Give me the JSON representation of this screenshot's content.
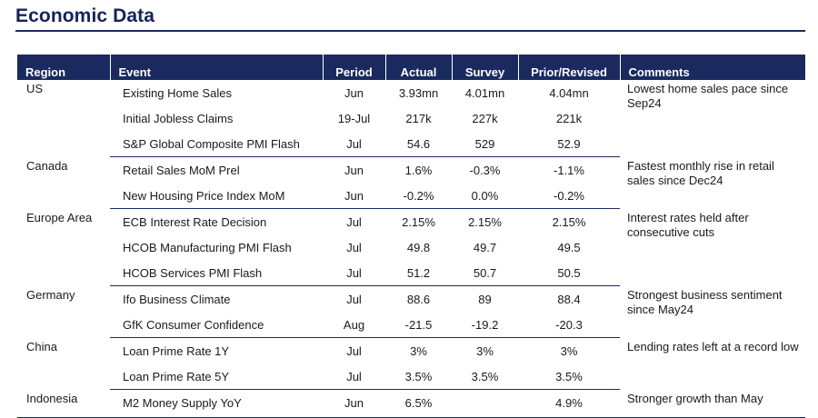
{
  "title": "Economic Data",
  "table": {
    "headers": [
      "Region",
      "Event",
      "Period",
      "Actual",
      "Survey",
      "Prior/Revised",
      "Comments"
    ],
    "groups": [
      {
        "region": "US",
        "comment": "Lowest home sales pace since Sep24",
        "rows": [
          {
            "event": "Existing Home Sales",
            "period": "Jun",
            "actual": "3.93mn",
            "survey": "4.01mn",
            "prior": "4.04mn"
          },
          {
            "event": "Initial Jobless Claims",
            "period": "19-Jul",
            "actual": "217k",
            "survey": "227k",
            "prior": "221k"
          },
          {
            "event": "S&P Global Composite PMI Flash",
            "period": "Jul",
            "actual": "54.6",
            "survey": "529",
            "prior": "52.9"
          }
        ]
      },
      {
        "region": "Canada",
        "comment": "Fastest monthly rise in retail sales since Dec24",
        "rows": [
          {
            "event": "Retail Sales MoM Prel",
            "period": "Jun",
            "actual": "1.6%",
            "survey": "-0.3%",
            "prior": "-1.1%"
          },
          {
            "event": "New Housing Price Index MoM",
            "period": "Jun",
            "actual": "-0.2%",
            "survey": "0.0%",
            "prior": "-0.2%"
          }
        ]
      },
      {
        "region": "Europe Area",
        "comment": "Interest rates held after consecutive cuts",
        "rows": [
          {
            "event": "ECB Interest Rate Decision",
            "period": "Jul",
            "actual": "2.15%",
            "survey": "2.15%",
            "prior": "2.15%"
          },
          {
            "event": "HCOB Manufacturing PMI Flash",
            "period": "Jul",
            "actual": "49.8",
            "survey": "49.7",
            "prior": "49.5"
          },
          {
            "event": "HCOB Services PMI Flash",
            "period": "Jul",
            "actual": "51.2",
            "survey": "50.7",
            "prior": "50.5"
          }
        ]
      },
      {
        "region": "Germany",
        "comment": "Strongest business sentiment since May24",
        "rows": [
          {
            "event": "Ifo Business Climate",
            "period": "Jul",
            "actual": "88.6",
            "survey": "89",
            "prior": "88.4"
          },
          {
            "event": "GfK Consumer Confidence",
            "period": "Aug",
            "actual": "-21.5",
            "survey": "-19.2",
            "prior": "-20.3"
          }
        ]
      },
      {
        "region": "China",
        "comment": "Lending rates left at a record low",
        "rows": [
          {
            "event": "Loan Prime Rate 1Y",
            "period": "Jul",
            "actual": "3%",
            "survey": "3%",
            "prior": "3%"
          },
          {
            "event": "Loan Prime Rate 5Y",
            "period": "Jul",
            "actual": "3.5%",
            "survey": "3.5%",
            "prior": "3.5%"
          }
        ]
      },
      {
        "region": "Indonesia",
        "comment": "Stronger growth than May",
        "rows": [
          {
            "event": "M2 Money Supply YoY",
            "period": "Jun",
            "actual": "6.5%",
            "survey": "",
            "prior": "4.9%"
          }
        ]
      }
    ]
  }
}
